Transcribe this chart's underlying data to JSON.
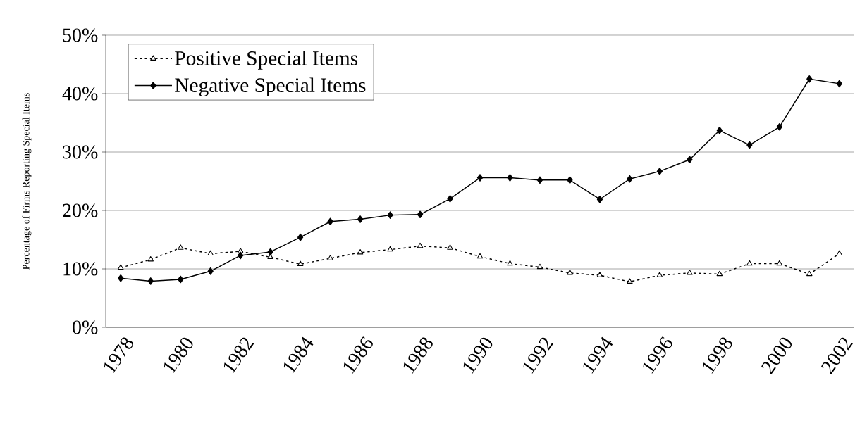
{
  "chart_data": {
    "type": "line",
    "ylabel": "Percentage of Firms Reporting Special Items",
    "categories": [
      "1978",
      null,
      "1980",
      null,
      "1982",
      null,
      "1984",
      null,
      "1986",
      null,
      "1988",
      null,
      "1990",
      null,
      "1992",
      null,
      "1994",
      null,
      "1996",
      null,
      "1998",
      null,
      "2000",
      null,
      "2002"
    ],
    "series": [
      {
        "name": "Positive Special Items",
        "color": "#000000",
        "marker": "triangle",
        "line_style": "dotted",
        "values": [
          10.2,
          11.6,
          13.6,
          12.6,
          13.0,
          12.0,
          10.8,
          11.8,
          12.8,
          13.3,
          13.9,
          13.6,
          12.1,
          10.9,
          10.3,
          9.3,
          8.9,
          7.8,
          8.9,
          9.3,
          9.1,
          10.9,
          10.9,
          9.1,
          12.6
        ]
      },
      {
        "name": "Negative Special Items",
        "color": "#000000",
        "marker": "diamond",
        "line_style": "solid",
        "values": [
          8.4,
          7.9,
          8.2,
          9.6,
          12.3,
          12.9,
          15.4,
          18.1,
          18.5,
          19.2,
          19.3,
          22.0,
          25.6,
          25.6,
          25.2,
          25.2,
          21.9,
          25.4,
          26.7,
          28.7,
          33.7,
          31.2,
          34.3,
          42.5,
          41.7
        ]
      }
    ],
    "ylim": [
      0,
      50
    ],
    "yticks": [
      {
        "value": 0,
        "label": "0%"
      },
      {
        "value": 10,
        "label": "10%"
      },
      {
        "value": 20,
        "label": "20%"
      },
      {
        "value": 30,
        "label": "30%"
      },
      {
        "value": 40,
        "label": "40%"
      },
      {
        "value": 50,
        "label": "50%"
      }
    ],
    "grid": "y",
    "legend": "top left"
  }
}
